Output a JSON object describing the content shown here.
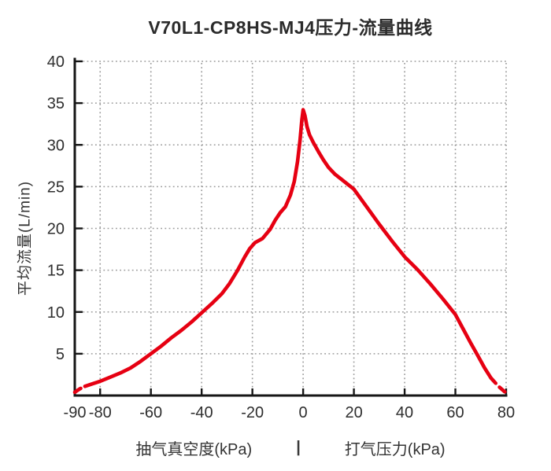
{
  "title": "V70L1-CP8HS-MJ4压力-流量曲线",
  "axes": {
    "y_title": "平均流量(L/min)",
    "x_title_left": "抽气真空度(kPa)",
    "x_title_separator": "|",
    "x_title_right": "打气压力(kPa)"
  },
  "chart_data": {
    "type": "line",
    "title": "V70L1-CP8HS-MJ4压力-流量曲线",
    "ylabel": "平均流量(L/min)",
    "xlabel": "抽气真空度(kPa) | 打气压力(kPa)",
    "xlim": [
      -90,
      80
    ],
    "ylim": [
      0,
      40
    ],
    "xticks": [
      -90,
      -80,
      -60,
      -40,
      -20,
      0,
      20,
      40,
      60,
      80
    ],
    "yticks": [
      5,
      10,
      15,
      20,
      25,
      30,
      35,
      40
    ],
    "xgrid": [
      -80,
      -60,
      -40,
      -20,
      0,
      20,
      40,
      60,
      80
    ],
    "ygrid": [
      5,
      10,
      15,
      20,
      25,
      30,
      35,
      40
    ],
    "grid": true,
    "grid_style": "dotted",
    "line_color": "#e60012",
    "series": [
      {
        "name": "压力-流量曲线",
        "dash_head_end_index": 2,
        "dash_tail_start_index": 56,
        "points": [
          [
            -90,
            0.4
          ],
          [
            -88,
            0.8
          ],
          [
            -86,
            1.1
          ],
          [
            -83,
            1.4
          ],
          [
            -80,
            1.7
          ],
          [
            -76,
            2.2
          ],
          [
            -72,
            2.7
          ],
          [
            -68,
            3.3
          ],
          [
            -64,
            4.1
          ],
          [
            -60,
            5.0
          ],
          [
            -56,
            5.9
          ],
          [
            -52,
            6.9
          ],
          [
            -48,
            7.8
          ],
          [
            -44,
            8.8
          ],
          [
            -40,
            9.9
          ],
          [
            -36,
            11.0
          ],
          [
            -32,
            12.2
          ],
          [
            -29,
            13.4
          ],
          [
            -26,
            14.9
          ],
          [
            -23,
            16.6
          ],
          [
            -21,
            17.6
          ],
          [
            -19,
            18.3
          ],
          [
            -16,
            18.8
          ],
          [
            -13,
            19.9
          ],
          [
            -11,
            21.0
          ],
          [
            -9,
            21.9
          ],
          [
            -7,
            22.6
          ],
          [
            -5,
            24.0
          ],
          [
            -3.5,
            25.6
          ],
          [
            -2.2,
            28.0
          ],
          [
            -1.2,
            30.6
          ],
          [
            -0.5,
            33.0
          ],
          [
            0,
            34.2
          ],
          [
            0.7,
            33.5
          ],
          [
            1.5,
            32.2
          ],
          [
            2.5,
            31.2
          ],
          [
            4,
            30.3
          ],
          [
            6,
            29.2
          ],
          [
            8,
            28.2
          ],
          [
            10,
            27.3
          ],
          [
            12.5,
            26.5
          ],
          [
            15,
            25.9
          ],
          [
            17.5,
            25.3
          ],
          [
            20,
            24.7
          ],
          [
            25,
            22.6
          ],
          [
            30,
            20.5
          ],
          [
            35,
            18.5
          ],
          [
            40,
            16.6
          ],
          [
            45,
            15.1
          ],
          [
            50,
            13.4
          ],
          [
            55,
            11.6
          ],
          [
            60,
            9.7
          ],
          [
            63,
            8.0
          ],
          [
            66,
            6.3
          ],
          [
            69,
            4.7
          ],
          [
            71.5,
            3.3
          ],
          [
            74,
            2.1
          ],
          [
            77,
            1.1
          ],
          [
            80,
            0.3
          ]
        ]
      }
    ]
  }
}
